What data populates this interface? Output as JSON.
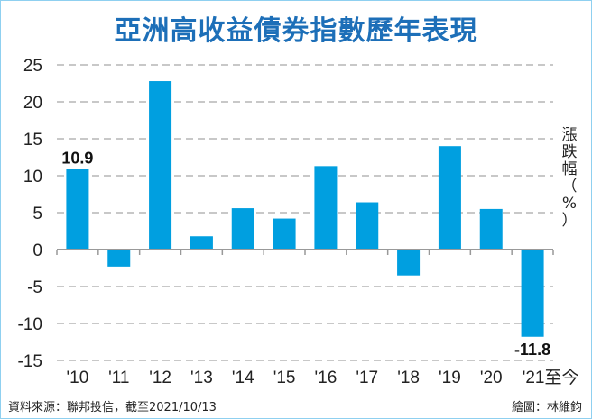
{
  "title": "亞洲高收益債券指數歷年表現",
  "source": "資料來源：聯邦投信，截至2021/10/13",
  "credit": "繪圖：林維鈞",
  "chart_data": {
    "type": "bar",
    "title": "亞洲高收益債券指數歷年表現",
    "ylabel": "漲跌幅（%）",
    "xlabel": "",
    "categories": [
      "'10",
      "'11",
      "'12",
      "'13",
      "'14",
      "'15",
      "'16",
      "'17",
      "'18",
      "'19",
      "'20",
      "'21至今"
    ],
    "values": [
      10.9,
      -2.3,
      22.8,
      1.8,
      5.6,
      4.2,
      11.3,
      6.4,
      -3.5,
      14.0,
      5.5,
      -11.8
    ],
    "data_labels": {
      "0": "10.9",
      "11": "-11.8"
    },
    "ylim": [
      -15,
      25
    ],
    "yticks": [
      "-15",
      "-10",
      "-5",
      "0",
      "5",
      "10",
      "15",
      "20",
      "25"
    ],
    "grid": true,
    "bar_color": "#009fe0"
  }
}
